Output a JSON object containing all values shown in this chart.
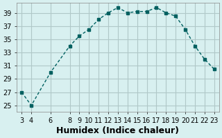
{
  "x": [
    3,
    4,
    6,
    8,
    9,
    10,
    11,
    12,
    13,
    14,
    15,
    16,
    17,
    18,
    19,
    20,
    21,
    22,
    23
  ],
  "y": [
    27,
    25,
    30,
    34,
    35.5,
    36.5,
    38.0,
    39.0,
    39.8,
    39.0,
    39.2,
    39.2,
    39.8,
    39.0,
    38.5,
    36.5,
    34.0,
    32.0,
    30.5
  ],
  "xlabel": "Humidex (Indice chaleur)",
  "ylabel": "",
  "xticks": [
    3,
    4,
    6,
    8,
    9,
    10,
    11,
    12,
    13,
    14,
    15,
    16,
    17,
    18,
    19,
    20,
    21,
    22,
    23
  ],
  "yticks": [
    25,
    27,
    29,
    31,
    33,
    35,
    37,
    39
  ],
  "xlim": [
    2.5,
    23.5
  ],
  "ylim": [
    24,
    40.5
  ],
  "line_color": "#006060",
  "marker_color": "#006060",
  "bg_color": "#d8f0f0",
  "grid_color": "#b0c8c8",
  "xlabel_fontsize": 9,
  "tick_fontsize": 7
}
